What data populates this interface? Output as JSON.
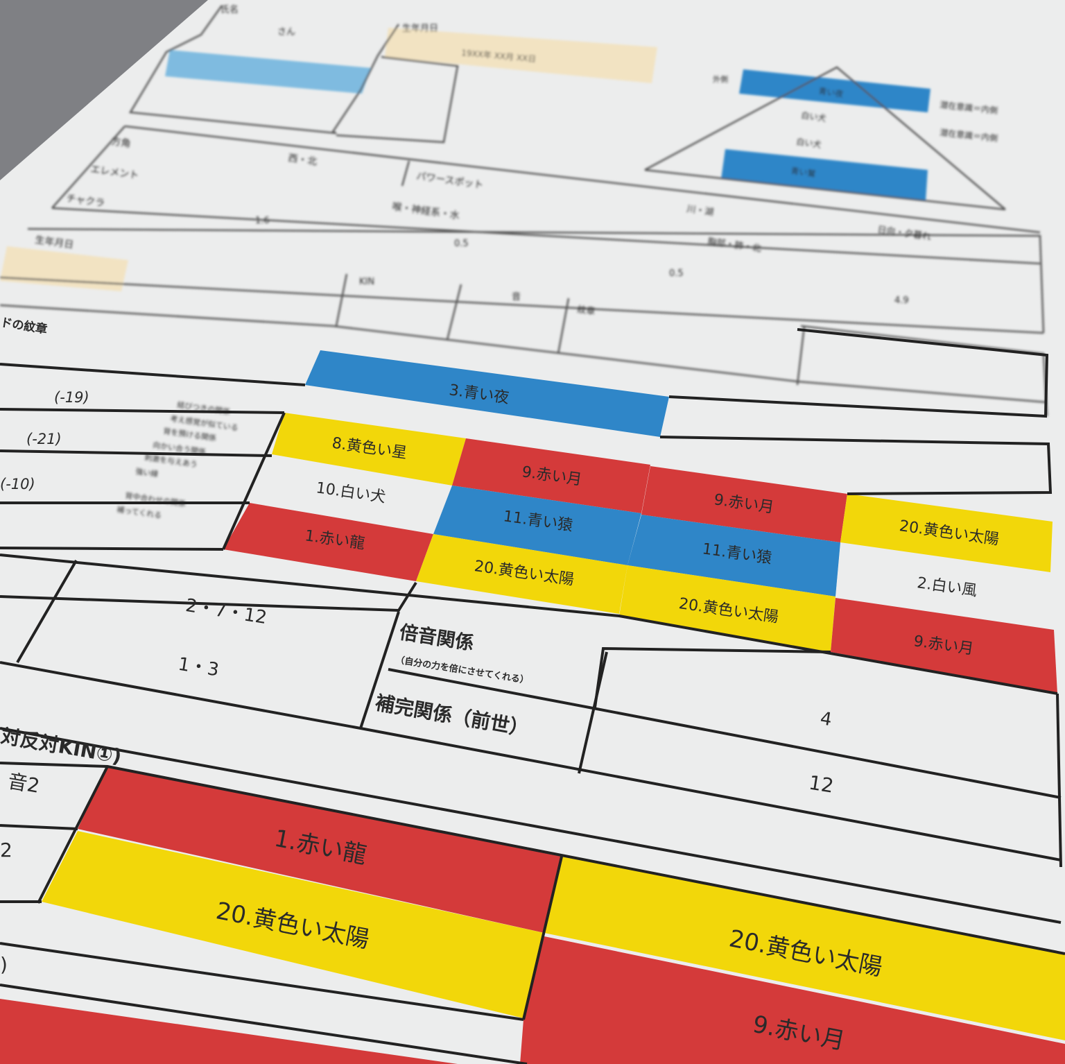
{
  "document": {
    "header": {
      "name_label": "氏名",
      "name_value": "さん",
      "birth_label": "生年月日",
      "birth_value": "19XX年 XX月 XX日",
      "kin_label": "KIN",
      "tone_label": "音",
      "glyph_label": "紋章",
      "direction_label": "方角",
      "direction_value": "西・北",
      "element_label": "エレメント",
      "powerspot_label": "パワースポット",
      "chakra_label": "チャクラ",
      "chakra_value": "喉・神経系・水",
      "values": [
        "1.6",
        "0.5",
        "0.5",
        "4.9"
      ],
      "misc": [
        "川・湖",
        "胸部・肺・北",
        "日向・夕暮れ"
      ]
    },
    "pyramid": {
      "left_label": "外側",
      "right_labels": [
        "潜在意識＝内側",
        "潜在意識＝内側"
      ],
      "rows": [
        "青い夜",
        "白い犬",
        "白い犬",
        "青い鷲"
      ]
    },
    "wavespell_label": "ドの紋章",
    "relations": [
      {
        "offset": "(-19)",
        "desc": [
          "結びつきの関係",
          "考え感覚が似ている",
          "背を預ける関係"
        ]
      },
      {
        "offset": "(-21)",
        "desc": [
          "向かい合う関係",
          "刺激を与えあう",
          "強い縁"
        ]
      },
      {
        "offset": "(-10)",
        "desc": [
          "背中合わせの関係",
          "補ってくれる"
        ]
      }
    ],
    "grid": {
      "main": "3.青い夜",
      "cells": [
        "8.黄色い星",
        "9.赤い月",
        "10.白い犬",
        "11.青い猿",
        "9.赤い月",
        "1.赤い龍",
        "20.黄色い太陽",
        "11.青い猿",
        "20.黄色い太陽",
        "2.白い風",
        "20.黄色い太陽",
        "9.赤い月"
      ]
    },
    "numbers": {
      "row1": "2・7・12",
      "row2": "1・3",
      "overtone_label": "倍音関係",
      "overtone_note": "（自分の力を倍にさせてくれる）",
      "overtone_value": "4",
      "complement_label": "補完関係（前世）",
      "complement_value": "12"
    },
    "bottom": {
      "section_label": "対反対KIN①)",
      "tone_label": "音2",
      "row2_label": "2",
      "row3_label": ")",
      "cells": [
        "1.赤い龍",
        "20.黄色い太陽",
        "20.黄色い太陽",
        "9.赤い月"
      ]
    },
    "colors": {
      "red": "#d43a3a",
      "yellow": "#f2d70a",
      "blue": "#2f86c8",
      "light_blue": "#7fbbe0",
      "beige": "#f2e3c2",
      "paper": "#eeeff0"
    }
  }
}
